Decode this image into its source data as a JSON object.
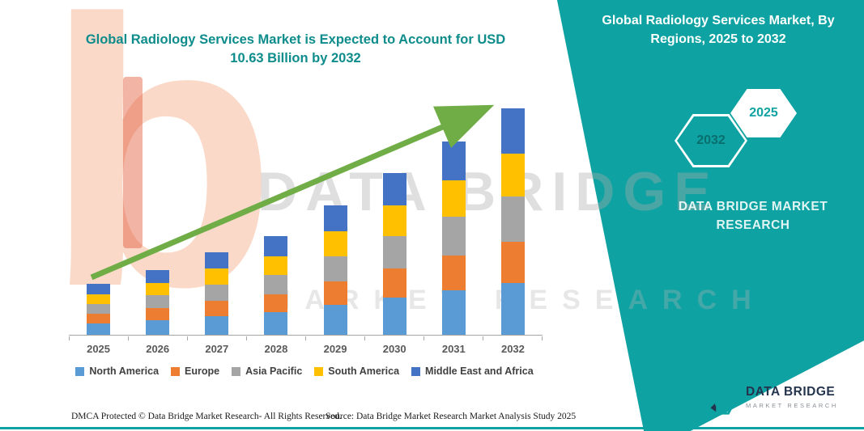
{
  "header": {
    "title": "Global Radiology Services Market is Expected to Account for USD 10.63 Billion by 2032"
  },
  "panel": {
    "title": "Global Radiology Services Market, By Regions, 2025 to 2032",
    "hex_back_year": "2032",
    "hex_front_year": "2025",
    "brand": "DATA BRIDGE MARKET RESEARCH",
    "teal_color": "#0FA2A2"
  },
  "watermark": {
    "line1": "DATA BRIDGE",
    "line2": "MARKET RESEARCH",
    "logo_letter": "b"
  },
  "chart_data": {
    "type": "bar",
    "stacked": true,
    "title": "Global Radiology Services Market is Expected to Account for USD 10.63 Billion by 2032",
    "unit": "USD Billion",
    "categories": [
      "2025",
      "2026",
      "2027",
      "2028",
      "2029",
      "2030",
      "2031",
      "2032"
    ],
    "series": [
      {
        "name": "North America",
        "color": "#5B9BD5",
        "values": [
          0.55,
          0.7,
          0.89,
          1.06,
          1.4,
          1.75,
          2.09,
          2.45
        ]
      },
      {
        "name": "Europe",
        "color": "#ED7D31",
        "values": [
          0.43,
          0.55,
          0.7,
          0.83,
          1.09,
          1.37,
          1.63,
          1.91
        ]
      },
      {
        "name": "Asia Pacific",
        "color": "#A5A5A5",
        "values": [
          0.48,
          0.61,
          0.77,
          0.93,
          1.21,
          1.52,
          1.81,
          2.13
        ]
      },
      {
        "name": "South America",
        "color": "#FFC000",
        "values": [
          0.45,
          0.58,
          0.74,
          0.88,
          1.15,
          1.44,
          1.72,
          2.02
        ]
      },
      {
        "name": "Middle East and Africa",
        "color": "#4472C4",
        "values": [
          0.48,
          0.6,
          0.77,
          0.93,
          1.22,
          1.51,
          1.82,
          2.12
        ]
      }
    ],
    "totals": [
      2.39,
      3.04,
      3.87,
      4.63,
      6.07,
      7.59,
      9.07,
      10.63
    ],
    "ylim": [
      0,
      12
    ],
    "gridlines": false,
    "y_axis_visible": false,
    "legend_position": "bottom",
    "trend_arrow": true,
    "trend_arrow_color": "#70AD47"
  },
  "footer": {
    "dmca": "DMCA Protected © Data Bridge Market Research-  All Rights Reserved.",
    "source": "Source: Data Bridge Market Research  Market Analysis Study 2025"
  },
  "logo": {
    "name": "DATA BRIDGE",
    "tagline": "MARKET RESEARCH"
  }
}
